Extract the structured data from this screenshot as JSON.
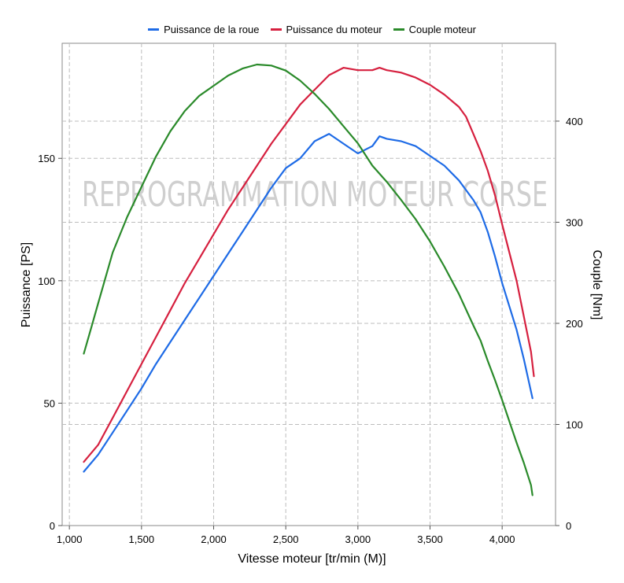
{
  "colors": {
    "wheel_power": "#1e6be6",
    "engine_power": "#d6203f",
    "engine_torque": "#2a8a2a"
  },
  "chart_data": {
    "type": "line",
    "watermark": "REPROGRAMMATION MOTEUR CORSE",
    "xlabel": "Vitesse moteur [tr/min (M)]",
    "ylabel": "Puissance [PS]",
    "y2label": "Couple [Nm]",
    "xlim": [
      950,
      4370
    ],
    "ylim": [
      0,
      197
    ],
    "y2lim": [
      0,
      477
    ],
    "xticks": [
      1000,
      1500,
      2000,
      2500,
      3000,
      3500,
      4000
    ],
    "xtick_labels": [
      "1,000",
      "1,500",
      "2,000",
      "2,500",
      "3,000",
      "3,500",
      "4,000"
    ],
    "yticks": [
      0,
      50,
      100,
      150
    ],
    "yticks_labels": [
      "0",
      "50",
      "100",
      "150"
    ],
    "y2ticks": [
      0,
      100,
      200,
      300,
      400
    ],
    "y2ticks_labels": [
      "0",
      "100",
      "200",
      "300",
      "400"
    ],
    "series": [
      {
        "name": "Puissance de la roue",
        "axis": "left",
        "color_key": "wheel_power",
        "x": [
          1100,
          1200,
          1300,
          1400,
          1500,
          1600,
          1700,
          1800,
          1900,
          2000,
          2100,
          2200,
          2300,
          2400,
          2500,
          2600,
          2700,
          2800,
          2900,
          3000,
          3100,
          3150,
          3200,
          3300,
          3400,
          3500,
          3600,
          3700,
          3800,
          3850,
          3900,
          3950,
          4000,
          4100,
          4150,
          4210
        ],
        "y": [
          22,
          29,
          38,
          47,
          56,
          66,
          75,
          84,
          93,
          102,
          111,
          120,
          129,
          138,
          146,
          150,
          157,
          160,
          156,
          152,
          155,
          159,
          158,
          157,
          155,
          151,
          147,
          141,
          133,
          128,
          120,
          110,
          99,
          80,
          68,
          52
        ]
      },
      {
        "name": "Puissance du moteur",
        "axis": "left",
        "color_key": "engine_power",
        "x": [
          1100,
          1200,
          1300,
          1400,
          1500,
          1600,
          1700,
          1800,
          1900,
          2000,
          2100,
          2200,
          2300,
          2400,
          2500,
          2600,
          2700,
          2800,
          2900,
          3000,
          3100,
          3150,
          3200,
          3300,
          3400,
          3500,
          3600,
          3700,
          3750,
          3800,
          3850,
          3900,
          3950,
          4000,
          4100,
          4200,
          4220
        ],
        "y": [
          26,
          33,
          44,
          55,
          66,
          77,
          88,
          99,
          109,
          119,
          129,
          138,
          147,
          156,
          164,
          172,
          178,
          184,
          187,
          186,
          186,
          187,
          186,
          185,
          183,
          180,
          176,
          171,
          167,
          160,
          153,
          145,
          135,
          123,
          100,
          71,
          61
        ]
      },
      {
        "name": "Couple moteur",
        "axis": "right",
        "color_key": "engine_torque",
        "x": [
          1100,
          1150,
          1200,
          1300,
          1400,
          1500,
          1600,
          1700,
          1800,
          1900,
          2000,
          2100,
          2200,
          2300,
          2400,
          2500,
          2600,
          2700,
          2800,
          2900,
          3000,
          3100,
          3200,
          3300,
          3400,
          3500,
          3600,
          3700,
          3800,
          3850,
          3900,
          3950,
          4000,
          4100,
          4150,
          4200,
          4210
        ],
        "y": [
          170,
          195,
          220,
          270,
          305,
          335,
          365,
          390,
          410,
          425,
          435,
          445,
          452,
          456,
          455,
          450,
          440,
          427,
          412,
          395,
          378,
          356,
          340,
          322,
          303,
          281,
          256,
          229,
          198,
          183,
          163,
          144,
          124,
          82,
          62,
          40,
          30
        ]
      }
    ]
  }
}
